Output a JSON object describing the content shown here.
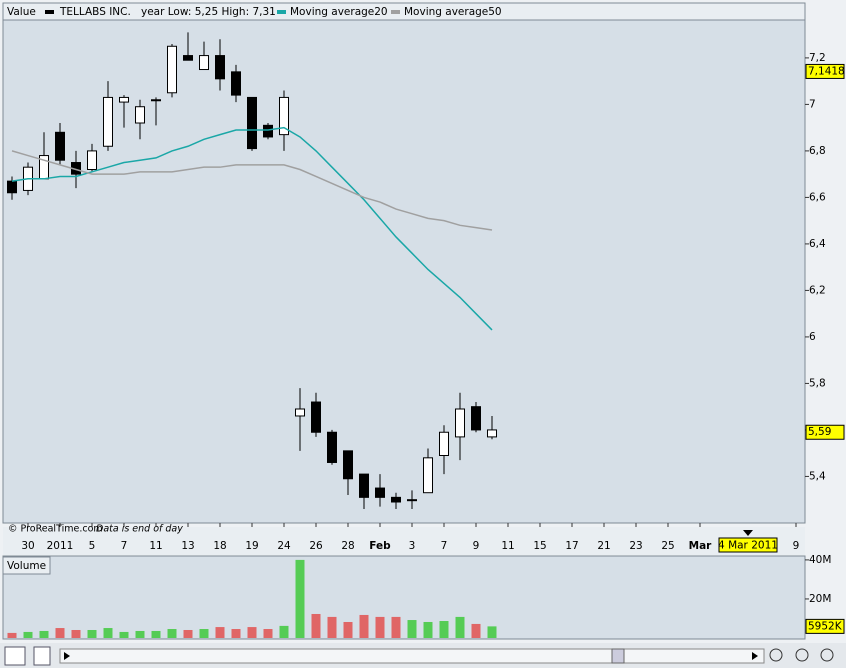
{
  "chart_data": {
    "type": "candlestick",
    "header": "Value",
    "title": "TELLABS INC.",
    "subtitle": "year Low: 5,25 High: 7,31",
    "credit": "© ProRealTime.com",
    "note": "Data is end of day",
    "up_color": "#ffffff",
    "down_color": "#000000",
    "ylim": [
      5.204,
      7.363
    ],
    "yticks": [
      {
        "value": 5.4,
        "label": "5,4"
      },
      {
        "value": 5.6,
        "label": "5,6"
      },
      {
        "value": 5.8,
        "label": "5,8"
      },
      {
        "value": 6,
        "label": "6"
      },
      {
        "value": 6.2,
        "label": "6,2"
      },
      {
        "value": 6.4,
        "label": "6,4"
      },
      {
        "value": 6.6,
        "label": "6,6"
      },
      {
        "value": 6.8,
        "label": "6,8"
      },
      {
        "value": 7,
        "label": "7"
      },
      {
        "value": 7.2,
        "label": "7,2"
      }
    ],
    "xlim": [
      -0.5625,
      49.5625
    ],
    "xticks": [
      {
        "value": 1,
        "label": "30"
      },
      {
        "value": 3,
        "label": "2011"
      },
      {
        "value": 5,
        "label": "5"
      },
      {
        "value": 7,
        "label": "7"
      },
      {
        "value": 9,
        "label": "11"
      },
      {
        "value": 11,
        "label": "13"
      },
      {
        "value": 13,
        "label": "18"
      },
      {
        "value": 15,
        "label": "19"
      },
      {
        "value": 17,
        "label": "24"
      },
      {
        "value": 19,
        "label": "26"
      },
      {
        "value": 21,
        "label": "28"
      },
      {
        "value": 23,
        "label": "Feb"
      },
      {
        "value": 25,
        "label": "3"
      },
      {
        "value": 27,
        "label": "7"
      },
      {
        "value": 29,
        "label": "9"
      },
      {
        "value": 31,
        "label": "11"
      },
      {
        "value": 33,
        "label": "15"
      },
      {
        "value": 35,
        "label": "17"
      },
      {
        "value": 37,
        "label": "21"
      },
      {
        "value": 39,
        "label": "23"
      },
      {
        "value": 41,
        "label": "25"
      },
      {
        "value": 43,
        "label": "Mar"
      },
      {
        "value": 49,
        "label": "9"
      }
    ],
    "cursor_date": {
      "value": 46,
      "label": "4 Mar 2011"
    },
    "price_markers": [
      {
        "value": 7.1418,
        "label": "7,1418"
      },
      {
        "value": 5.59,
        "label": "5,59"
      }
    ],
    "candles": {
      "name": "TELLABS INC.",
      "open": [
        6.67,
        6.63,
        6.68,
        6.88,
        6.75,
        6.72,
        6.82,
        7.01,
        6.92,
        7.02,
        7.05,
        7.21,
        7.15,
        7.21,
        7.14,
        7.03,
        6.91,
        6.87,
        5.66,
        5.72,
        5.59,
        5.51,
        5.41,
        5.35,
        5.31,
        5.3,
        5.33,
        5.49,
        5.57,
        5.7,
        5.57
      ],
      "high": [
        6.69,
        6.75,
        6.88,
        6.92,
        6.8,
        6.83,
        7.1,
        7.04,
        7.02,
        7.03,
        7.26,
        7.31,
        7.27,
        7.28,
        7.17,
        7.03,
        6.92,
        7.06,
        5.78,
        5.76,
        5.6,
        5.51,
        5.41,
        5.41,
        5.33,
        5.34,
        5.52,
        5.62,
        5.76,
        5.72,
        5.66
      ],
      "low": [
        6.59,
        6.61,
        6.68,
        6.74,
        6.64,
        6.71,
        6.8,
        6.9,
        6.85,
        6.91,
        7.03,
        7.19,
        7.15,
        7.06,
        7.01,
        6.8,
        6.85,
        6.8,
        5.51,
        5.57,
        5.45,
        5.32,
        5.26,
        5.27,
        5.26,
        5.26,
        5.33,
        5.41,
        5.47,
        5.59,
        5.56
      ],
      "close": [
        6.62,
        6.73,
        6.78,
        6.76,
        6.7,
        6.8,
        7.03,
        7.03,
        6.99,
        7.02,
        7.25,
        7.19,
        7.21,
        7.11,
        7.04,
        6.81,
        6.86,
        7.03,
        5.69,
        5.59,
        5.46,
        5.39,
        5.31,
        5.31,
        5.29,
        5.3,
        5.48,
        5.59,
        5.69,
        5.6,
        5.6
      ]
    },
    "series": [
      {
        "name": "Moving average20",
        "color": "#1aa7a7",
        "values": [
          6.67,
          6.68,
          6.68,
          6.69,
          6.69,
          6.71,
          6.73,
          6.75,
          6.76,
          6.77,
          6.8,
          6.82,
          6.85,
          6.87,
          6.89,
          6.89,
          6.89,
          6.9,
          6.86,
          6.8,
          6.73,
          6.66,
          6.59,
          6.51,
          6.43,
          6.36,
          6.29,
          6.23,
          6.17,
          6.1,
          6.03
        ]
      },
      {
        "name": "Moving average50",
        "color": "#a0a0a0",
        "values": [
          6.8,
          6.78,
          6.76,
          6.74,
          6.72,
          6.7,
          6.7,
          6.7,
          6.71,
          6.71,
          6.71,
          6.72,
          6.73,
          6.73,
          6.74,
          6.74,
          6.74,
          6.74,
          6.72,
          6.69,
          6.66,
          6.63,
          6.6,
          6.58,
          6.55,
          6.53,
          6.51,
          6.5,
          6.48,
          6.47,
          6.46
        ]
      }
    ],
    "volume": {
      "title": "Volume",
      "up_color": "#55cc55",
      "down_color": "#e06666",
      "ylim": [
        0,
        42
      ],
      "yticks": [
        {
          "value": 20,
          "label": "20M"
        },
        {
          "value": 40,
          "label": "40M"
        }
      ],
      "values": [
        2.6,
        3.1,
        3.6,
        5.1,
        4.1,
        4.1,
        5.1,
        3.1,
        3.6,
        3.6,
        4.6,
        4.1,
        4.6,
        5.6,
        4.6,
        5.6,
        4.6,
        6.2,
        40,
        12.3,
        10.8,
        8.2,
        11.8,
        10.8,
        10.8,
        9.2,
        8.2,
        8.7,
        10.8,
        7.2,
        5.952
      ],
      "last": {
        "value": 5.952,
        "label": "5952K"
      }
    }
  }
}
